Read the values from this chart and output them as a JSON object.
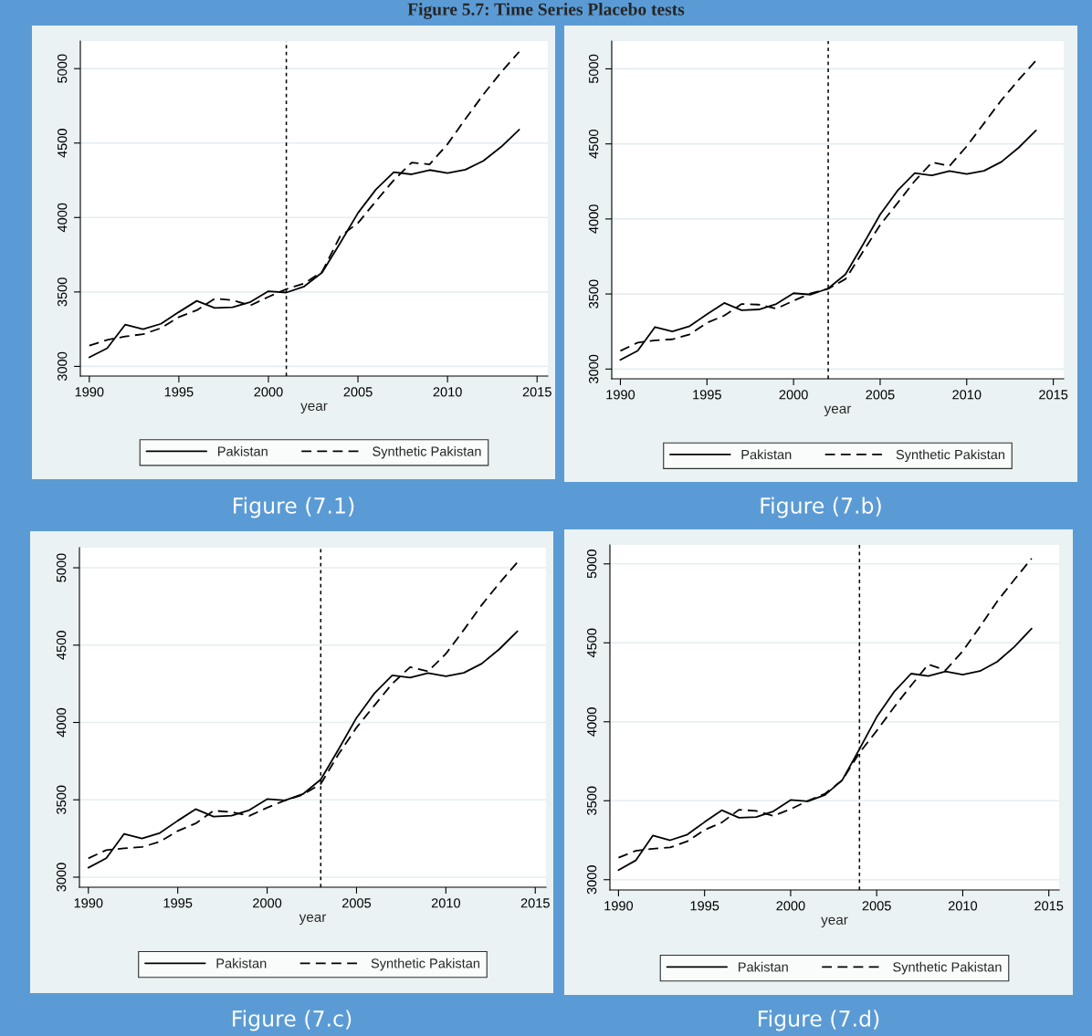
{
  "chart_data": [
    {
      "type": "line",
      "title": "Figure 5.7: Time Series Placebo tests",
      "xlabel": "year",
      "annotations": [
        "Figure (7.1)"
      ],
      "x": [
        1990,
        1991,
        1992,
        1993,
        1994,
        1995,
        1996,
        1997,
        1998,
        1999,
        2000,
        2001,
        2002,
        2003,
        2004,
        2005,
        2006,
        2007,
        2008,
        2009,
        2010,
        2011,
        2012,
        2013,
        2014
      ],
      "series": [
        {
          "name": "Pakistan",
          "color": "#000000",
          "line_style": "solid",
          "values": [
            3061,
            3122,
            3280,
            3250,
            3286,
            3365,
            3440,
            3392,
            3397,
            3433,
            3505,
            3496,
            3537,
            3631,
            3827,
            4030,
            4188,
            4305,
            4290,
            4319,
            4299,
            4321,
            4380,
            4475,
            4590
          ]
        },
        {
          "name": "Synthetic Pakistan",
          "color": "#000000",
          "line_style": "dashed",
          "values": [
            3140,
            3178,
            3201,
            3216,
            3257,
            3331,
            3377,
            3455,
            3444,
            3410,
            3467,
            3519,
            3557,
            3636,
            3873,
            3963,
            4109,
            4251,
            4369,
            4357,
            4493,
            4662,
            4826,
            4977,
            5113
          ]
        }
      ],
      "xlim": [
        1989.5,
        2015.6
      ],
      "ylim": [
        2935,
        5185
      ],
      "xticks": [
        1990,
        1995,
        2000,
        2005,
        2010,
        2015
      ],
      "yticks": [
        3000,
        3500,
        4000,
        4500,
        5000
      ],
      "ref_lines": [
        {
          "axis": "x",
          "value": 2001,
          "color": "#000000",
          "line_style": "dotted"
        }
      ],
      "grid": "y",
      "legend": "bottom"
    },
    {
      "type": "line",
      "xlabel": "year",
      "annotations": [
        "Figure (7.b)"
      ],
      "x": [
        1990,
        1991,
        1992,
        1993,
        1994,
        1995,
        1996,
        1997,
        1998,
        1999,
        2000,
        2001,
        2002,
        2003,
        2004,
        2005,
        2006,
        2007,
        2008,
        2009,
        2010,
        2011,
        2012,
        2013,
        2014
      ],
      "series": [
        {
          "name": "Pakistan",
          "color": "#000000",
          "line_style": "solid",
          "values": [
            3061,
            3122,
            3280,
            3250,
            3286,
            3365,
            3440,
            3392,
            3397,
            3433,
            3505,
            3496,
            3537,
            3631,
            3827,
            4030,
            4188,
            4305,
            4290,
            4319,
            4299,
            4321,
            4380,
            4475,
            4590
          ]
        },
        {
          "name": "Synthetic Pakistan",
          "color": "#000000",
          "line_style": "dashed",
          "values": [
            3121,
            3176,
            3191,
            3198,
            3231,
            3308,
            3356,
            3433,
            3429,
            3402,
            3455,
            3505,
            3534,
            3600,
            3780,
            3960,
            4105,
            4253,
            4378,
            4352,
            4484,
            4637,
            4791,
            4927,
            5055
          ]
        }
      ],
      "xlim": [
        1989.5,
        2015.6
      ],
      "ylim": [
        2935,
        5185
      ],
      "xticks": [
        1990,
        1995,
        2000,
        2005,
        2010,
        2015
      ],
      "yticks": [
        3000,
        3500,
        4000,
        4500,
        5000
      ],
      "ref_lines": [
        {
          "axis": "x",
          "value": 2002,
          "color": "#000000",
          "line_style": "dotted"
        }
      ],
      "grid": "y",
      "legend": "bottom"
    },
    {
      "type": "line",
      "xlabel": "year",
      "annotations": [
        "Figure (7.c)"
      ],
      "x": [
        1990,
        1991,
        1992,
        1993,
        1994,
        1995,
        1996,
        1997,
        1998,
        1999,
        2000,
        2001,
        2002,
        2003,
        2004,
        2005,
        2006,
        2007,
        2008,
        2009,
        2010,
        2011,
        2012,
        2013,
        2014
      ],
      "series": [
        {
          "name": "Pakistan",
          "color": "#000000",
          "line_style": "solid",
          "values": [
            3061,
            3122,
            3280,
            3250,
            3286,
            3365,
            3440,
            3392,
            3397,
            3433,
            3505,
            3496,
            3537,
            3631,
            3827,
            4030,
            4188,
            4305,
            4290,
            4319,
            4299,
            4321,
            4380,
            4475,
            4590
          ]
        },
        {
          "name": "Synthetic Pakistan",
          "color": "#000000",
          "line_style": "dashed",
          "values": [
            3122,
            3175,
            3186,
            3195,
            3229,
            3299,
            3347,
            3430,
            3421,
            3396,
            3449,
            3496,
            3533,
            3603,
            3796,
            3967,
            4110,
            4251,
            4358,
            4330,
            4444,
            4598,
            4759,
            4902,
            5036
          ]
        }
      ],
      "xlim": [
        1989.5,
        2015.6
      ],
      "ylim": [
        2935,
        5130
      ],
      "xticks": [
        1990,
        1995,
        2000,
        2005,
        2010,
        2015
      ],
      "yticks": [
        3000,
        3500,
        4000,
        4500,
        5000
      ],
      "ref_lines": [
        {
          "axis": "x",
          "value": 2003,
          "color": "#000000",
          "line_style": "dotted"
        }
      ],
      "grid": "y",
      "legend": "bottom"
    },
    {
      "type": "line",
      "xlabel": "year",
      "annotations": [
        "Figure (7.d)"
      ],
      "x": [
        1990,
        1991,
        1992,
        1993,
        1994,
        1995,
        1996,
        1997,
        1998,
        1999,
        2000,
        2001,
        2002,
        2003,
        2004,
        2005,
        2006,
        2007,
        2008,
        2009,
        2010,
        2011,
        2012,
        2013,
        2014
      ],
      "series": [
        {
          "name": "Pakistan",
          "color": "#000000",
          "line_style": "solid",
          "values": [
            3061,
            3122,
            3280,
            3250,
            3286,
            3365,
            3440,
            3392,
            3397,
            3433,
            3505,
            3496,
            3537,
            3631,
            3827,
            4030,
            4188,
            4305,
            4290,
            4319,
            4299,
            4321,
            4380,
            4475,
            4590
          ]
        },
        {
          "name": "Synthetic Pakistan",
          "color": "#000000",
          "line_style": "dashed",
          "values": [
            3140,
            3183,
            3196,
            3204,
            3243,
            3315,
            3362,
            3443,
            3436,
            3404,
            3447,
            3500,
            3545,
            3630,
            3804,
            3943,
            4091,
            4230,
            4364,
            4326,
            4447,
            4602,
            4762,
            4900,
            5034
          ]
        }
      ],
      "xlim": [
        1989.5,
        2015.6
      ],
      "ylim": [
        2935,
        5120
      ],
      "xticks": [
        1990,
        1995,
        2000,
        2005,
        2010,
        2015
      ],
      "yticks": [
        3000,
        3500,
        4000,
        4500,
        5000
      ],
      "ref_lines": [
        {
          "axis": "x",
          "value": 2004,
          "color": "#000000",
          "line_style": "dotted"
        }
      ],
      "grid": "y",
      "legend": "bottom"
    }
  ]
}
